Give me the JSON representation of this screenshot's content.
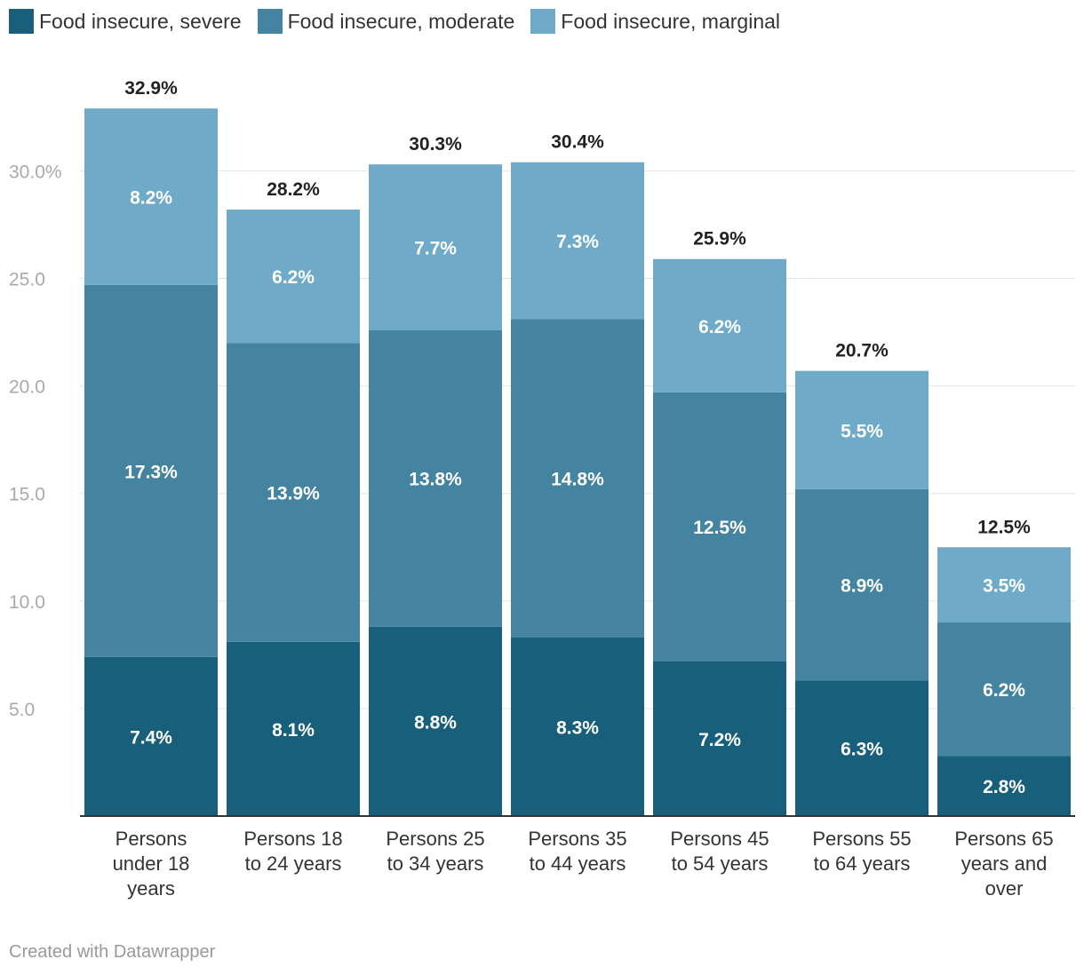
{
  "legend": [
    {
      "label": "Food insecure, severe",
      "color": "#175f7a"
    },
    {
      "label": "Food insecure, moderate",
      "color": "#4584a0"
    },
    {
      "label": "Food insecure, marginal",
      "color": "#6fabc8"
    }
  ],
  "footer": "Created with Datawrapper",
  "chart_data": {
    "type": "bar",
    "stacked": true,
    "categories": [
      [
        "Persons",
        "under 18",
        "years"
      ],
      [
        "Persons 18",
        "to 24 years"
      ],
      [
        "Persons 25",
        "to 34 years"
      ],
      [
        "Persons 35",
        "to 44 years"
      ],
      [
        "Persons 45",
        "to 54 years"
      ],
      [
        "Persons 55",
        "to 64 years"
      ],
      [
        "Persons 65",
        "years and",
        "over"
      ]
    ],
    "series": [
      {
        "name": "Food insecure, severe",
        "color": "#175f7a",
        "values": [
          7.4,
          8.1,
          8.8,
          8.3,
          7.2,
          6.3,
          2.8
        ],
        "labels": [
          "7.4%",
          "8.1%",
          "8.8%",
          "8.3%",
          "7.2%",
          "6.3%",
          "2.8%"
        ]
      },
      {
        "name": "Food insecure, moderate",
        "color": "#4584a0",
        "values": [
          17.3,
          13.9,
          13.8,
          14.8,
          12.5,
          8.9,
          6.2
        ],
        "labels": [
          "17.3%",
          "13.9%",
          "13.8%",
          "14.8%",
          "12.5%",
          "8.9%",
          "6.2%"
        ]
      },
      {
        "name": "Food insecure, marginal",
        "color": "#6fabc8",
        "values": [
          8.2,
          6.2,
          7.7,
          7.3,
          6.2,
          5.5,
          3.5
        ],
        "labels": [
          "8.2%",
          "6.2%",
          "7.7%",
          "7.3%",
          "6.2%",
          "5.5%",
          "3.5%"
        ]
      }
    ],
    "totals": [
      32.9,
      28.2,
      30.3,
      30.4,
      25.9,
      20.7,
      12.5
    ],
    "total_labels": [
      "32.9%",
      "28.2%",
      "30.3%",
      "30.4%",
      "25.9%",
      "20.7%",
      "12.5%"
    ],
    "yticks": [
      5,
      10,
      15,
      20,
      25,
      30
    ],
    "ytick_labels": [
      "5.0",
      "10.0",
      "15.0",
      "20.0",
      "25.0",
      "30.0%"
    ],
    "ylim": [
      0,
      33
    ]
  }
}
